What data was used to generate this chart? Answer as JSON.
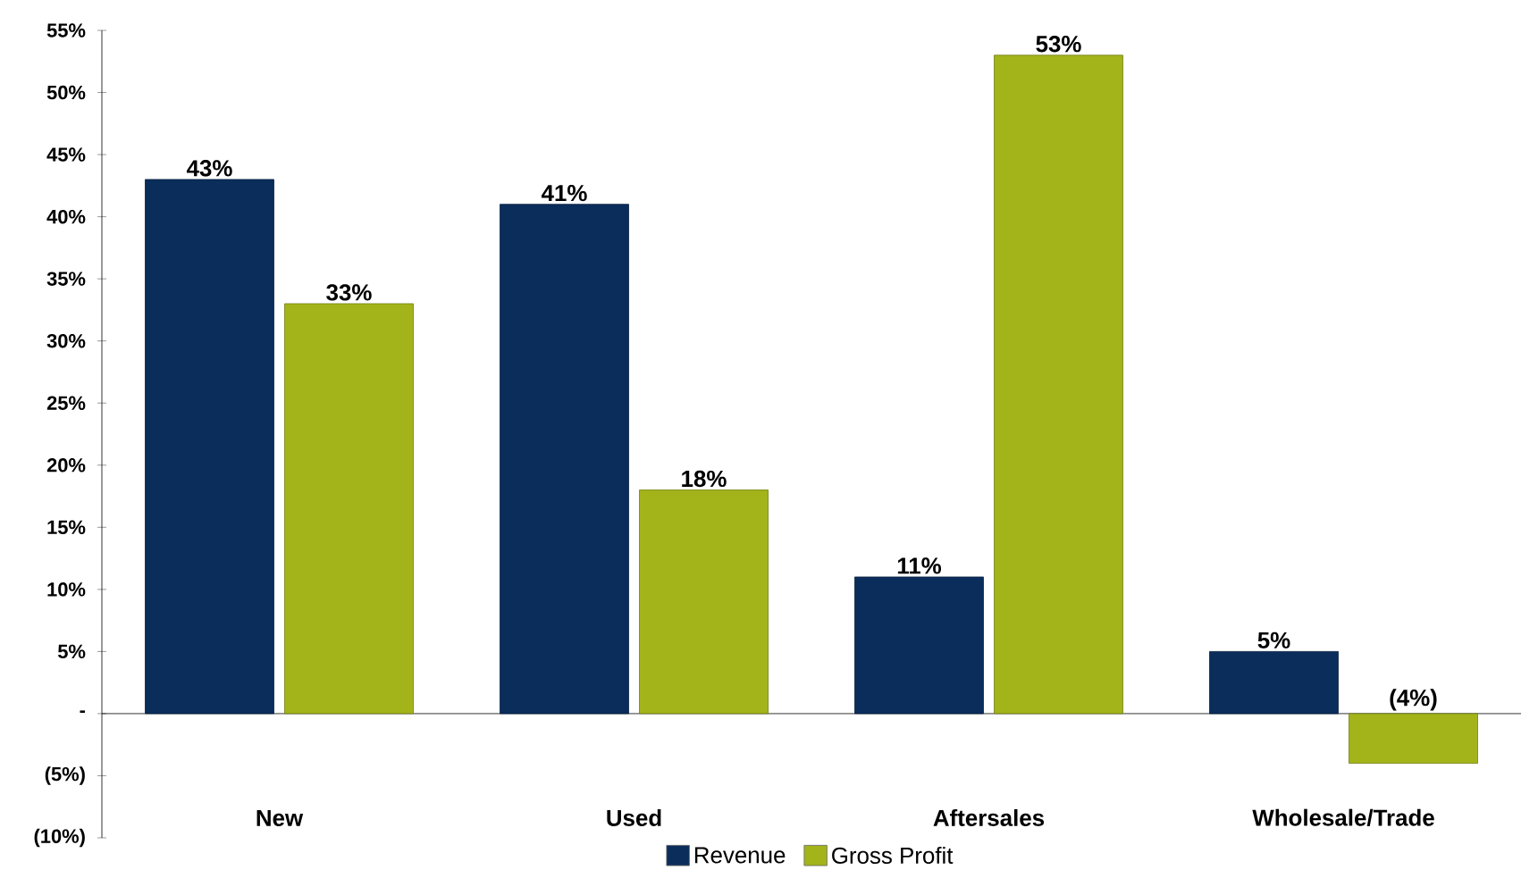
{
  "chart_data": {
    "type": "bar",
    "categories": [
      "New",
      "Used",
      "Aftersales",
      "Wholesale/Trade"
    ],
    "series": [
      {
        "name": "Revenue",
        "color": "#0b2d5b",
        "values": [
          43,
          41,
          11,
          5
        ],
        "value_labels": [
          "43%",
          "41%",
          "11%",
          "5%"
        ]
      },
      {
        "name": "Gross Profit",
        "color": "#a3b41a",
        "values": [
          33,
          18,
          53,
          -4
        ],
        "value_labels": [
          "33%",
          "18%",
          "53%",
          "(4%)"
        ]
      }
    ],
    "ylim": [
      -10,
      55
    ],
    "yticks": [
      {
        "value": -10,
        "label": "(10%)"
      },
      {
        "value": -5,
        "label": "(5%)"
      },
      {
        "value": 0,
        "label": "-"
      },
      {
        "value": 5,
        "label": "5%"
      },
      {
        "value": 10,
        "label": "10%"
      },
      {
        "value": 15,
        "label": "15%"
      },
      {
        "value": 20,
        "label": "20%"
      },
      {
        "value": 25,
        "label": "25%"
      },
      {
        "value": 30,
        "label": "30%"
      },
      {
        "value": 35,
        "label": "35%"
      },
      {
        "value": 40,
        "label": "40%"
      },
      {
        "value": 45,
        "label": "45%"
      },
      {
        "value": 50,
        "label": "50%"
      },
      {
        "value": 55,
        "label": "55%"
      }
    ],
    "legend": "bottom"
  }
}
